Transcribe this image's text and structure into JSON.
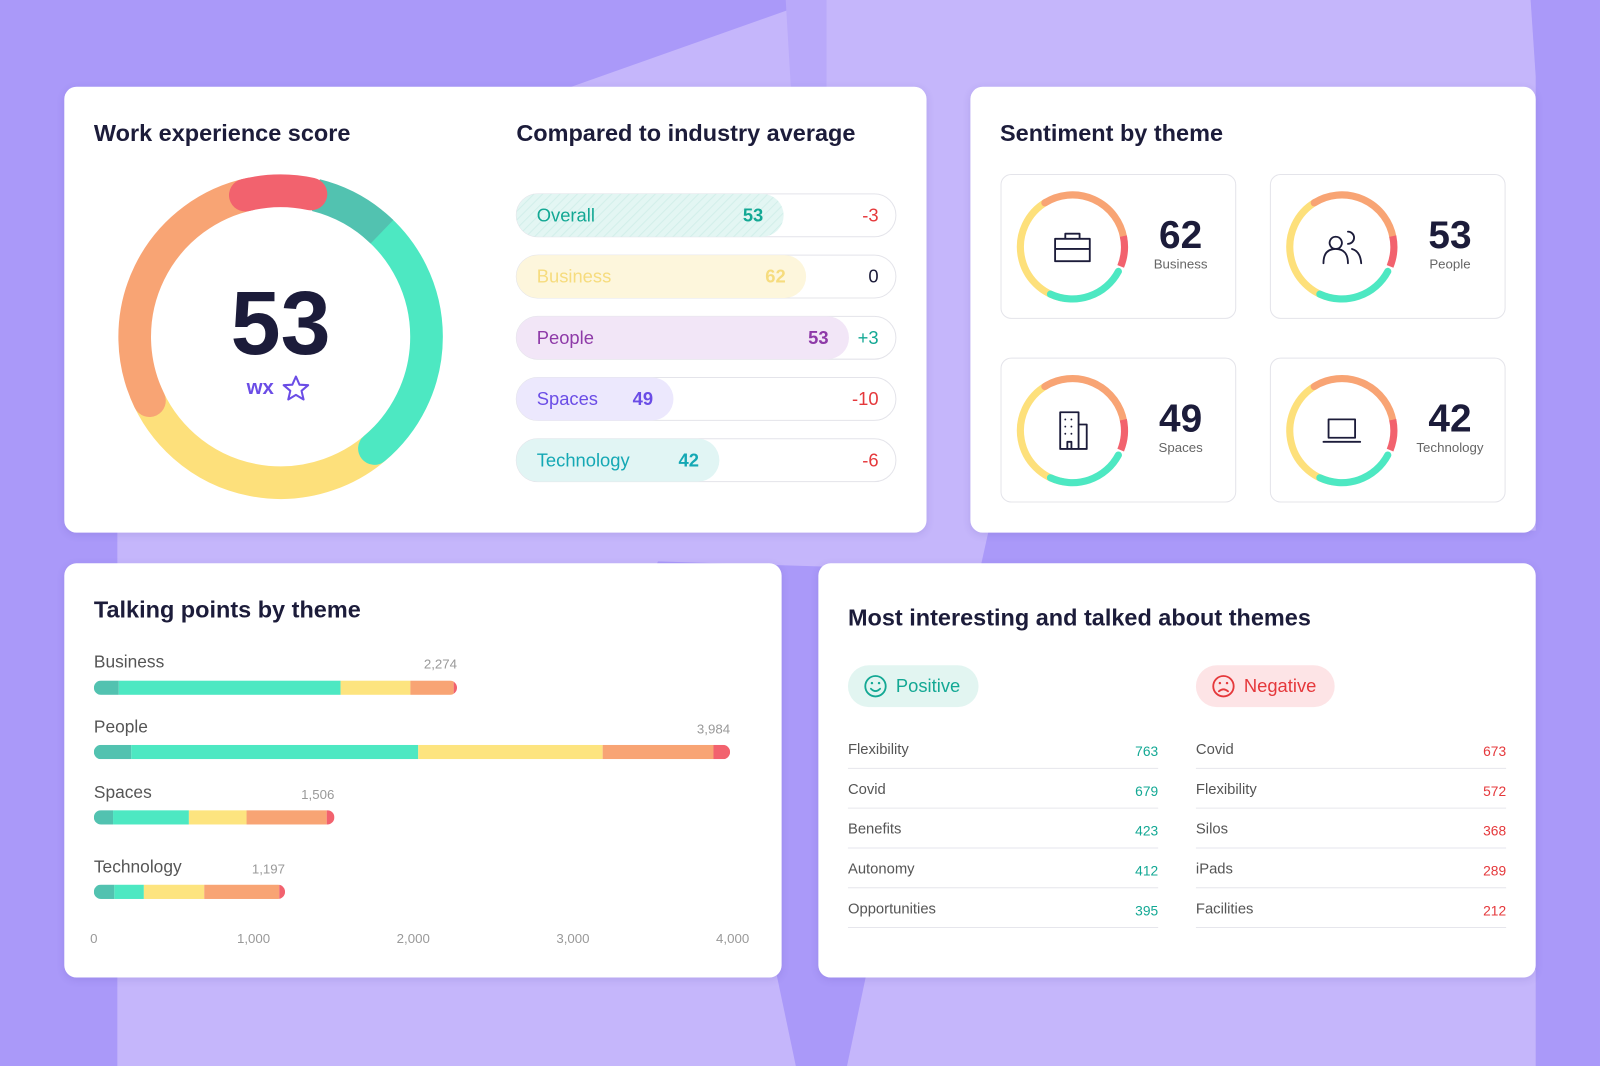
{
  "score_card": {
    "title": "Work experience score",
    "score": "53",
    "unit": "wx"
  },
  "comparison": {
    "title": "Compared to industry average",
    "rows": [
      {
        "label": "Overall",
        "value": "53",
        "delta": "-3"
      },
      {
        "label": "Business",
        "value": "62",
        "delta": "0"
      },
      {
        "label": "People",
        "value": "53",
        "delta": "+3"
      },
      {
        "label": "Spaces",
        "value": "49",
        "delta": "-10"
      },
      {
        "label": "Technology",
        "value": "42",
        "delta": "-6"
      }
    ]
  },
  "sentiment": {
    "title": "Sentiment by theme",
    "items": [
      {
        "value": "62",
        "label": "Business"
      },
      {
        "value": "53",
        "label": "People"
      },
      {
        "value": "49",
        "label": "Spaces"
      },
      {
        "value": "42",
        "label": "Technology"
      }
    ]
  },
  "talking_points": {
    "title": "Talking points by theme",
    "colors": [
      "#52c2b0",
      "#4de8c2",
      "#fde47f",
      "#f8a474",
      "#f2626e"
    ],
    "xlim": [
      0,
      4000
    ],
    "xticks": [
      0,
      {
        "value": 1000,
        "label": "1,000"
      },
      {
        "value": 2000,
        "label": "2,000"
      },
      {
        "value": 3000,
        "label": "3,000"
      },
      {
        "value": 4000,
        "label": "4,000"
      }
    ],
    "themes": [
      {
        "name": "Business",
        "total": 2274,
        "total_label": "2,274",
        "segments": [
          156,
          1389,
          437,
          271,
          21
        ]
      },
      {
        "name": "People",
        "total": 3984,
        "total_label": "3,984",
        "segments": [
          234,
          1797,
          1155,
          694,
          104
        ]
      },
      {
        "name": "Spaces",
        "total": 1506,
        "total_label": "1,506",
        "segments": [
          120,
          475,
          361,
          502,
          48
        ]
      },
      {
        "name": "Technology",
        "total": 1197,
        "total_label": "1,197",
        "segments": [
          128,
          185,
          378,
          470,
          36
        ]
      }
    ]
  },
  "themes": {
    "title": "Most interesting and talked about themes",
    "positive": {
      "label": "Positive",
      "items": [
        {
          "name": "Flexibility",
          "count": "763"
        },
        {
          "name": "Covid",
          "count": "679"
        },
        {
          "name": "Benefits",
          "count": "423"
        },
        {
          "name": "Autonomy",
          "count": "412"
        },
        {
          "name": "Opportunities",
          "count": "395"
        }
      ]
    },
    "negative": {
      "label": "Negative",
      "items": [
        {
          "name": "Covid",
          "count": "673"
        },
        {
          "name": "Flexibility",
          "count": "572"
        },
        {
          "name": "Silos",
          "count": "368"
        },
        {
          "name": "iPads",
          "count": "289"
        },
        {
          "name": "Facilities",
          "count": "212"
        }
      ]
    }
  }
}
